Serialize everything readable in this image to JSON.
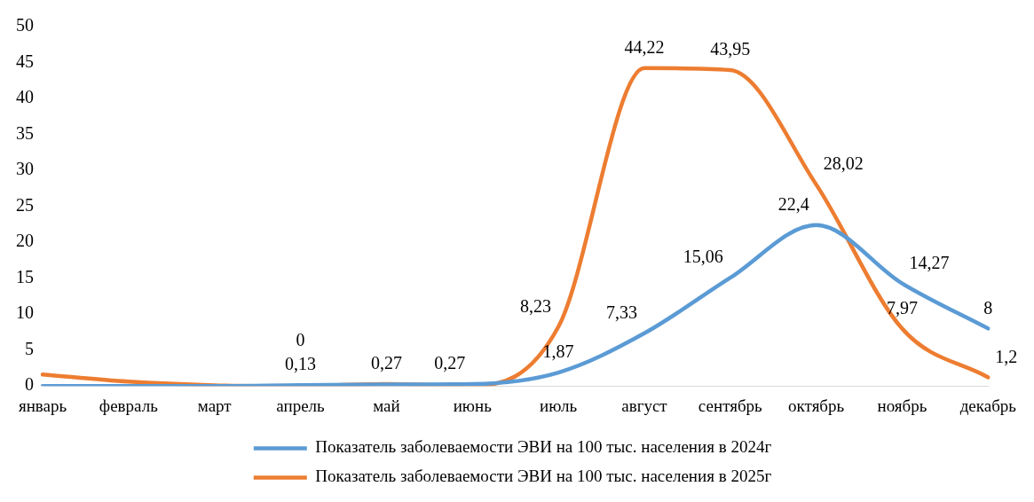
{
  "chart_data": {
    "type": "line",
    "categories": [
      "январь",
      "февраль",
      "март",
      "апрель",
      "май",
      "июнь",
      "июль",
      "август",
      "сентябрь",
      "октябрь",
      "ноябрь",
      "декабрь"
    ],
    "series": [
      {
        "name": "Показатель заболеваемости ЭВИ на 100 тыс. населения в 2024г",
        "color": "#5b9bd5",
        "values": [
          0,
          0,
          0,
          0.13,
          0.2,
          0.27,
          1.87,
          7.33,
          15.06,
          22.4,
          14.27,
          8
        ],
        "value_labels": [
          null,
          null,
          null,
          "0,13",
          null,
          "0,27",
          "1,87",
          "7,33",
          "15,06",
          "22,4",
          "14,27",
          "8"
        ]
      },
      {
        "name": "Показатель заболеваемости ЭВИ на 100 тыс. населения в 2025г",
        "color": "#ed7d31",
        "values": [
          1.6,
          0.6,
          0.1,
          0,
          0.27,
          0,
          8.23,
          44.22,
          43.95,
          28.02,
          7.97,
          1.2
        ],
        "value_labels": [
          null,
          null,
          null,
          "0",
          "0,27",
          null,
          "8,23",
          "44,22",
          "43,95",
          "28,02",
          "7,97",
          "1,2"
        ]
      }
    ],
    "ylim": [
      0,
      50
    ],
    "yticks": [
      0,
      5,
      10,
      15,
      20,
      25,
      30,
      35,
      40,
      45,
      50
    ],
    "grid": false,
    "legend": "bottom",
    "marker": "none",
    "line_style": "solid"
  }
}
